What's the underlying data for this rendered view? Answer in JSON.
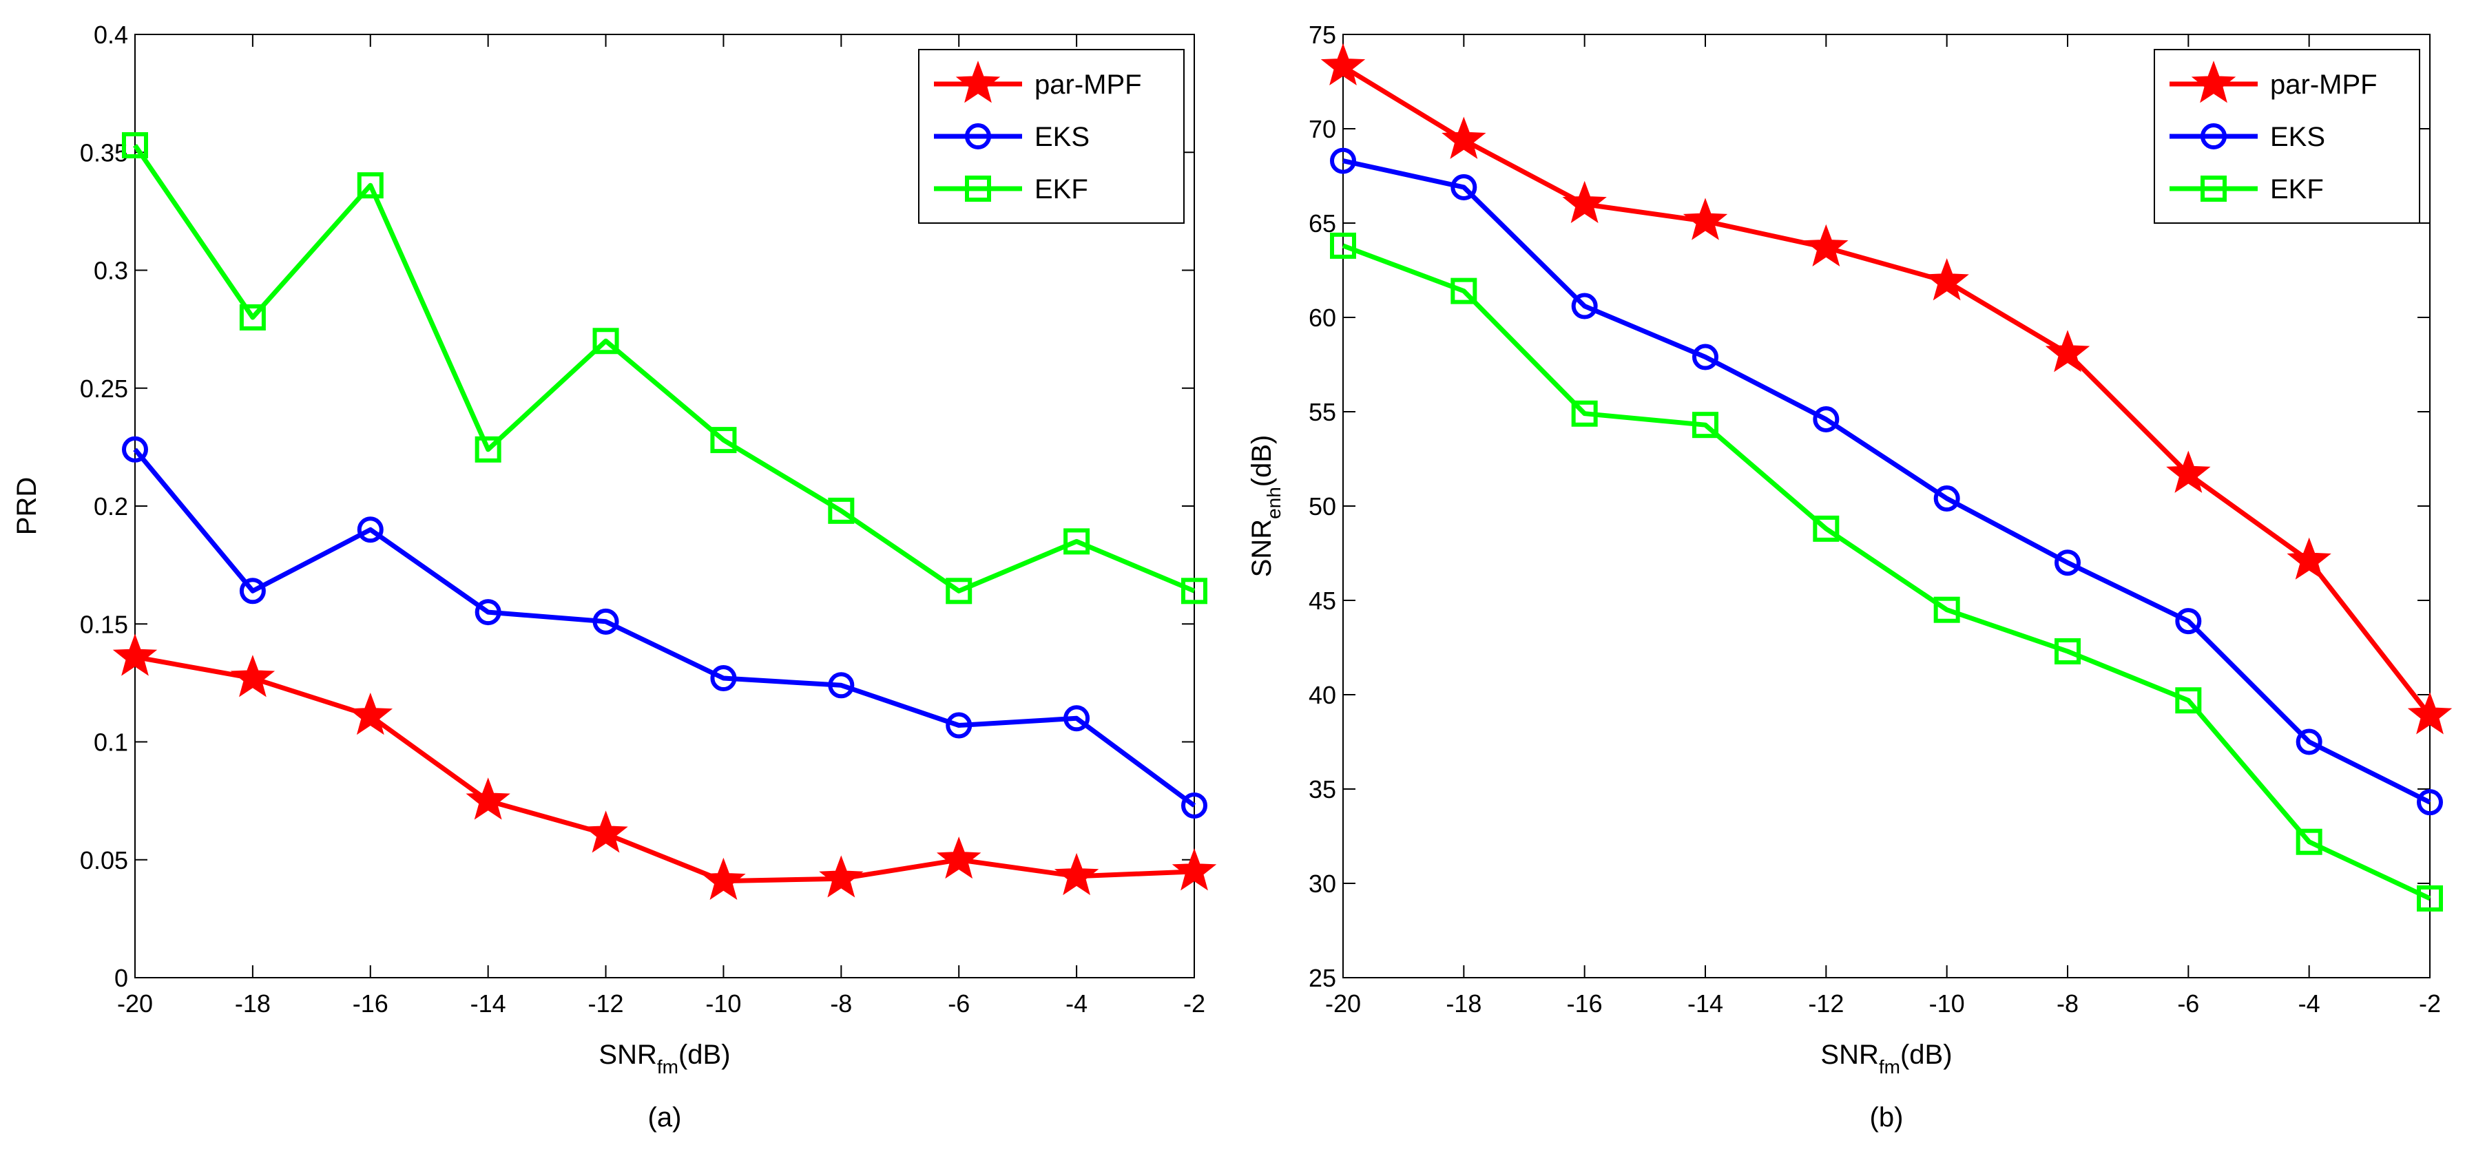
{
  "chart_data": [
    {
      "type": "line",
      "panel_label": "(a)",
      "xlabel": {
        "main": "SNR",
        "sub": "fm",
        "suffix": "(dB)"
      },
      "ylabel": {
        "main": "PRD",
        "sub": "",
        "suffix": ""
      },
      "x": [
        -20,
        -18,
        -16,
        -14,
        -12,
        -10,
        -8,
        -6,
        -4,
        -2
      ],
      "xticks": [
        "-20",
        "-18",
        "-16",
        "-14",
        "-12",
        "-10",
        "-8",
        "-6",
        "-4",
        "-2"
      ],
      "yticks": [
        "0",
        "0.05",
        "0.1",
        "0.15",
        "0.2",
        "0.25",
        "0.3",
        "0.35",
        "0.4"
      ],
      "xlim": [
        -20,
        -2
      ],
      "ylim": [
        0,
        0.4
      ],
      "legend_position": "top-right",
      "grid": false,
      "series": [
        {
          "name": "par-MPF",
          "color": "#ff0000",
          "marker": "star",
          "values": [
            0.136,
            0.127,
            0.111,
            0.075,
            0.061,
            0.041,
            0.042,
            0.05,
            0.043,
            0.045
          ]
        },
        {
          "name": "EKS",
          "color": "#0000ff",
          "marker": "circle",
          "values": [
            0.224,
            0.164,
            0.19,
            0.155,
            0.151,
            0.127,
            0.124,
            0.107,
            0.11,
            0.073
          ]
        },
        {
          "name": "EKF",
          "color": "#00ff00",
          "marker": "square",
          "values": [
            0.353,
            0.28,
            0.336,
            0.224,
            0.27,
            0.228,
            0.198,
            0.164,
            0.185,
            0.164
          ]
        }
      ]
    },
    {
      "type": "line",
      "panel_label": "(b)",
      "xlabel": {
        "main": "SNR",
        "sub": "fm",
        "suffix": "(dB)"
      },
      "ylabel": {
        "main": "SNR",
        "sub": "enh",
        "suffix": "(dB)"
      },
      "x": [
        -20,
        -18,
        -16,
        -14,
        -12,
        -10,
        -8,
        -6,
        -4,
        -2
      ],
      "xticks": [
        "-20",
        "-18",
        "-16",
        "-14",
        "-12",
        "-10",
        "-8",
        "-6",
        "-4",
        "-2"
      ],
      "yticks": [
        "25",
        "30",
        "35",
        "40",
        "45",
        "50",
        "55",
        "60",
        "65",
        "70",
        "75"
      ],
      "xlim": [
        -20,
        -2
      ],
      "ylim": [
        25,
        75
      ],
      "legend_position": "top-right",
      "grid": false,
      "series": [
        {
          "name": "par-MPF",
          "color": "#ff0000",
          "marker": "star",
          "values": [
            73.3,
            69.4,
            66.0,
            65.1,
            63.7,
            61.9,
            58.1,
            51.7,
            47.1,
            38.9
          ]
        },
        {
          "name": "EKS",
          "color": "#0000ff",
          "marker": "circle",
          "values": [
            68.3,
            66.9,
            60.6,
            57.9,
            54.6,
            50.4,
            47.0,
            43.9,
            37.5,
            34.3
          ]
        },
        {
          "name": "EKF",
          "color": "#00ff00",
          "marker": "square",
          "values": [
            63.8,
            61.4,
            54.9,
            54.3,
            48.8,
            44.5,
            42.3,
            39.7,
            32.2,
            29.2
          ]
        }
      ]
    }
  ]
}
